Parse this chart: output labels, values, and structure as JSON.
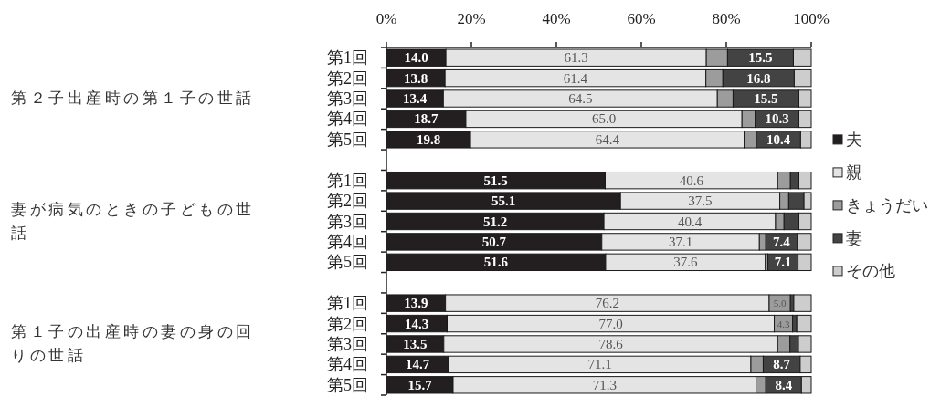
{
  "chart_data": {
    "type": "bar",
    "orientation": "horizontal",
    "stacked": true,
    "categories": [
      "第1回",
      "第2回",
      "第3回",
      "第4回",
      "第5回",
      null,
      "第1回",
      "第2回",
      "第3回",
      "第4回",
      "第5回",
      null,
      "第1回",
      "第2回",
      "第3回",
      "第4回",
      "第5回"
    ],
    "series": [
      {
        "name": "夫",
        "color": "#231f20",
        "values": [
          14.0,
          13.8,
          13.4,
          18.7,
          19.8,
          null,
          51.5,
          55.1,
          51.2,
          50.7,
          51.6,
          null,
          13.9,
          14.3,
          13.5,
          14.7,
          15.7
        ],
        "value_labels": [
          "14.0",
          "13.8",
          "13.4",
          "18.7",
          "19.8",
          null,
          "51.5",
          "55.1",
          "51.2",
          "50.7",
          "51.6",
          null,
          "13.9",
          "14.3",
          "13.5",
          "14.7",
          "15.7"
        ]
      },
      {
        "name": "親",
        "color": "#e4e4e4",
        "values": [
          61.3,
          61.4,
          64.5,
          65.0,
          64.4,
          null,
          40.6,
          37.5,
          40.4,
          37.1,
          37.6,
          null,
          76.2,
          77.0,
          78.6,
          71.1,
          71.3
        ],
        "value_labels": [
          "61.3",
          "61.4",
          "64.5",
          "65.0",
          "64.4",
          null,
          "40.6",
          "37.5",
          "40.4",
          "37.1",
          "37.6",
          null,
          "76.2",
          "77.0",
          "78.6",
          "71.1",
          "71.3"
        ]
      },
      {
        "name": "きょうだい",
        "color": "#9c9c9c",
        "values": [
          5.0,
          4.0,
          3.7,
          3.1,
          2.9,
          null,
          3.0,
          2.1,
          2.0,
          1.5,
          0.6,
          null,
          5.0,
          4.3,
          2.9,
          2.9,
          2.3
        ],
        "value_labels": [
          null,
          null,
          null,
          null,
          null,
          null,
          null,
          null,
          null,
          null,
          null,
          null,
          "5.0",
          "4.3",
          null,
          null,
          null
        ]
      },
      {
        "name": "妻",
        "color": "#434343",
        "values": [
          15.5,
          16.8,
          15.5,
          10.3,
          10.4,
          null,
          2.0,
          3.6,
          3.5,
          7.4,
          7.1,
          null,
          0.8,
          1.0,
          2.0,
          8.7,
          8.4
        ],
        "value_labels": [
          "15.5",
          "16.8",
          "15.5",
          "10.3",
          "10.4",
          null,
          null,
          null,
          null,
          "7.4",
          "7.1",
          null,
          null,
          null,
          null,
          "8.7",
          "8.4"
        ]
      },
      {
        "name": "その他",
        "color": "#cdcdcd",
        "values": [
          4.2,
          4.0,
          2.9,
          2.9,
          2.5,
          null,
          2.9,
          1.7,
          2.9,
          3.3,
          3.1,
          null,
          4.1,
          3.4,
          3.0,
          2.6,
          2.3
        ]
      }
    ],
    "xlim": [
      0,
      100
    ],
    "xticks": [
      {
        "value": 0,
        "label": "0%"
      },
      {
        "value": 20,
        "label": "20%"
      },
      {
        "value": 40,
        "label": "40%"
      },
      {
        "value": 60,
        "label": "60%"
      },
      {
        "value": 80,
        "label": "80%"
      },
      {
        "value": 100,
        "label": "100%"
      }
    ],
    "legend": "right",
    "annotations": [
      "第２子出産時の第１子の世話",
      "妻が病気のときの子どもの世話",
      "第１子の出産時の妻の身の回りの世話"
    ]
  }
}
